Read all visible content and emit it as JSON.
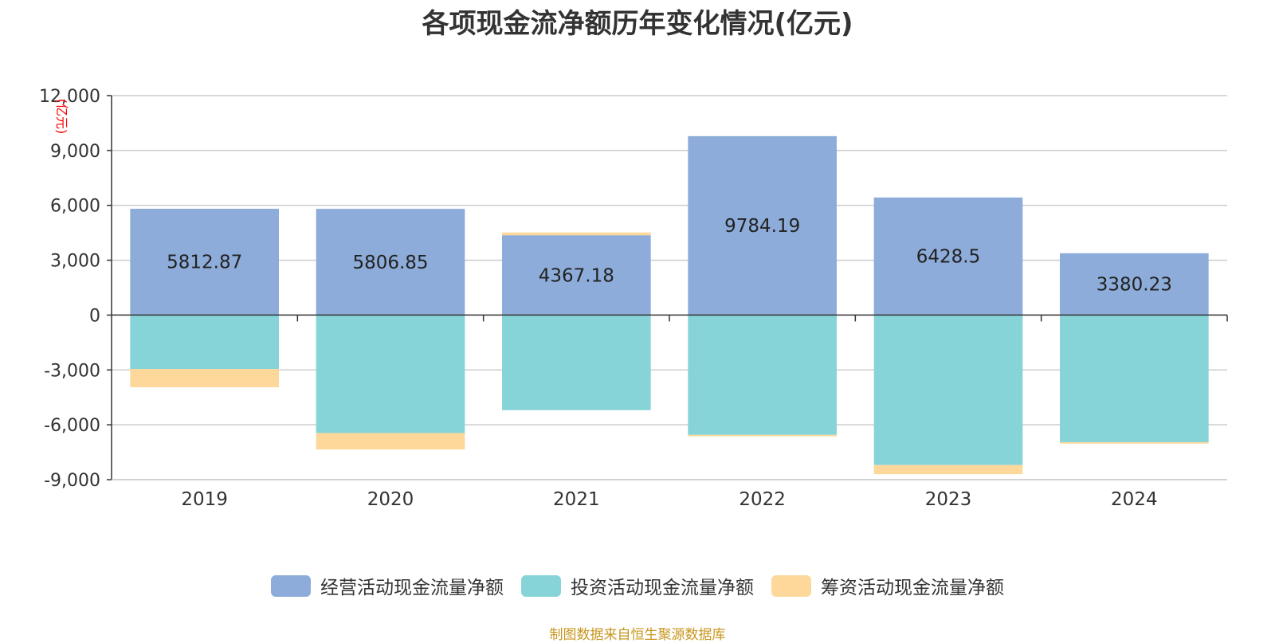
{
  "chart_data": {
    "type": "bar",
    "stacked": true,
    "title": "各项现金流净额历年变化情况(亿元)",
    "ylabel": "(亿元)",
    "xlabel": "",
    "ylim": [
      -9000,
      12000
    ],
    "yticks": [
      12000,
      9000,
      6000,
      3000,
      0,
      -3000,
      -6000,
      -9000
    ],
    "ytick_labels": [
      "12,000",
      "9,000",
      "6,000",
      "3,000",
      "0",
      "-3,000",
      "-6,000",
      "-9,000"
    ],
    "categories": [
      "2019",
      "2020",
      "2021",
      "2022",
      "2023",
      "2024"
    ],
    "series": [
      {
        "name": "经营活动现金流量净额",
        "color": "#8dacd9",
        "values": [
          5812.87,
          5806.85,
          4367.18,
          9784.19,
          6428.5,
          3380.23
        ],
        "labels": [
          "5812.87",
          "5806.85",
          "4367.18",
          "9784.19",
          "6428.5",
          "3380.23"
        ]
      },
      {
        "name": "投资活动现金流量净额",
        "color": "#86d4d8",
        "values": [
          -2950,
          -6450,
          -5200,
          -6550,
          -8200,
          -6950
        ]
      },
      {
        "name": "筹资活动现金流量净额",
        "color": "#fdd89a",
        "values": [
          -1000,
          -900,
          150,
          -80,
          -500,
          -80
        ]
      }
    ],
    "legend_position": "bottom",
    "grid": true
  },
  "source": "制图数据来自恒生聚源数据库"
}
